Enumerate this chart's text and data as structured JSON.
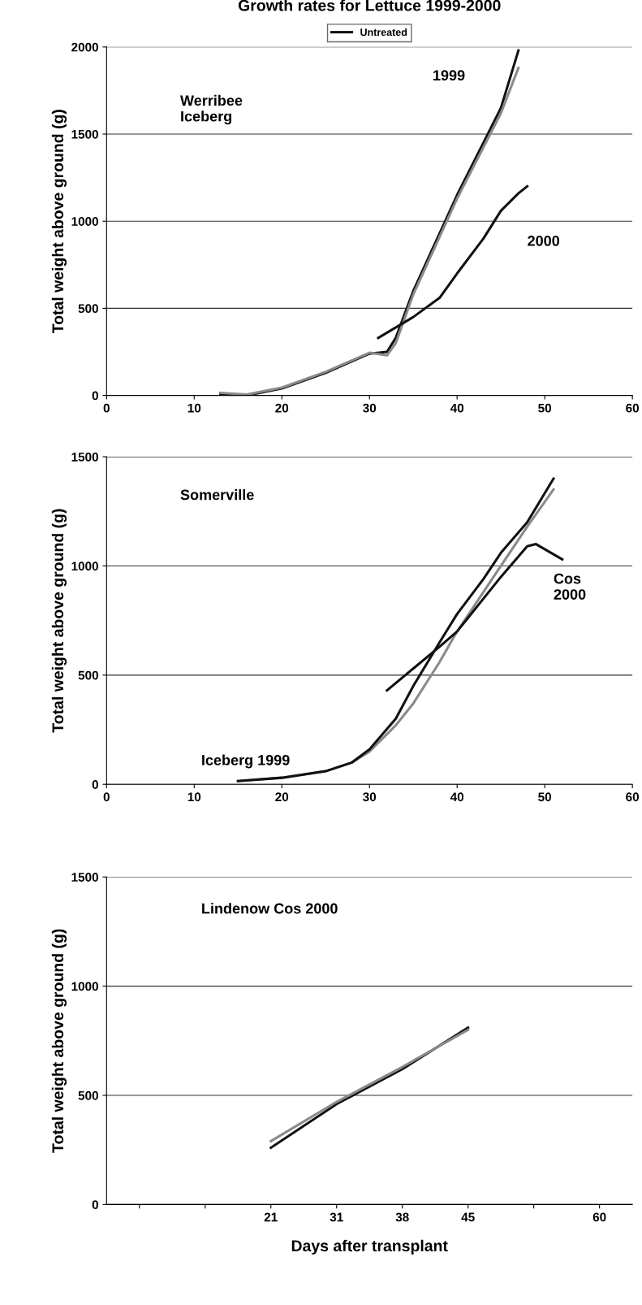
{
  "chart_data": [
    {
      "type": "line",
      "title": "Growth rates for Lettuce 1999-2000",
      "ylabel": "Total weight above ground (g)",
      "xlim": [
        0,
        60
      ],
      "xticks": [
        0,
        10,
        20,
        30,
        40,
        50,
        60
      ],
      "ylim": [
        0,
        2000
      ],
      "yticks": [
        0,
        500,
        1000,
        1500,
        2000
      ],
      "grid": "y",
      "legend": "top",
      "marker": "none",
      "annotations": [
        "Werribee\nIceberg",
        "1999",
        "2000"
      ],
      "series": [
        {
          "name": "Untreated",
          "color": "#111111",
          "x": [
            13,
            16,
            20,
            25,
            30,
            32,
            33,
            35,
            40,
            45,
            47
          ],
          "values": [
            10,
            0,
            40,
            130,
            240,
            250,
            330,
            600,
            1150,
            1650,
            1980
          ]
        },
        {
          "color": "#8a8a8a",
          "x": [
            13,
            16,
            20,
            25,
            30,
            32,
            33,
            35,
            40,
            45,
            47
          ],
          "values": [
            15,
            5,
            45,
            135,
            245,
            230,
            300,
            580,
            1130,
            1620,
            1880
          ]
        },
        {
          "color": "#111111",
          "x": [
            31,
            35,
            38,
            40,
            43,
            45,
            47,
            48
          ],
          "values": [
            330,
            450,
            560,
            700,
            900,
            1060,
            1160,
            1200
          ]
        }
      ]
    },
    {
      "type": "line",
      "ylabel": "Total weight above ground (g)",
      "xlim": [
        0,
        60
      ],
      "xticks": [
        0,
        10,
        20,
        30,
        40,
        50,
        60
      ],
      "ylim": [
        0,
        1500
      ],
      "yticks": [
        0,
        500,
        1000,
        1500
      ],
      "grid": "y",
      "marker": "none",
      "annotations": [
        "Somerville",
        "Cos\n2000",
        "Iceberg 1999"
      ],
      "series": [
        {
          "color": "#8a8a8a",
          "x": [
            15,
            20,
            25,
            28,
            30,
            33,
            35,
            38,
            40,
            45,
            48,
            51
          ],
          "values": [
            15,
            30,
            60,
            100,
            150,
            270,
            370,
            560,
            700,
            1000,
            1180,
            1350
          ]
        },
        {
          "color": "#111111",
          "x": [
            15,
            20,
            25,
            28,
            30,
            33,
            35,
            38,
            40,
            43,
            45,
            48,
            51
          ],
          "values": [
            15,
            30,
            60,
            100,
            160,
            300,
            450,
            650,
            780,
            940,
            1060,
            1200,
            1400
          ]
        },
        {
          "color": "#111111",
          "x": [
            32,
            35,
            38,
            40,
            45,
            48,
            49,
            52
          ],
          "values": [
            430,
            530,
            630,
            700,
            950,
            1090,
            1100,
            1030
          ]
        }
      ]
    },
    {
      "type": "line",
      "ylabel": "Total weight above ground (g)",
      "xlabel": "Days after transplant",
      "categories": [
        null,
        null,
        "21",
        "31",
        "38",
        "45",
        null,
        "60"
      ],
      "ylim": [
        0,
        1500
      ],
      "yticks": [
        0,
        500,
        1000,
        1500
      ],
      "grid": "y",
      "marker": "none",
      "annotations": [
        "Lindenow Cos 2000"
      ],
      "series": [
        {
          "color": "#111111",
          "values": [
            null,
            null,
            260,
            460,
            620,
            810,
            null,
            null
          ]
        },
        {
          "color": "#8a8a8a",
          "values": [
            null,
            null,
            290,
            470,
            630,
            800,
            null,
            null
          ]
        }
      ]
    }
  ]
}
